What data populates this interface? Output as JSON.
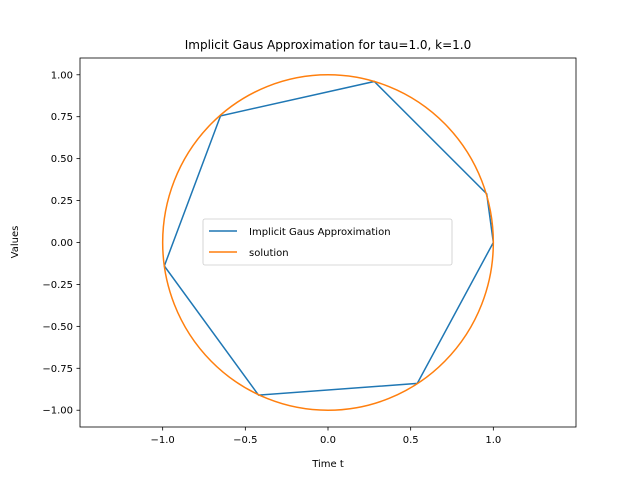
{
  "chart_data": {
    "type": "line",
    "title": "Implicit Gaus Approximation for tau=1.0, k=1.0",
    "xlabel": "Time t",
    "ylabel": "Values",
    "xlim": [
      -1.5,
      1.5
    ],
    "ylim": [
      -1.1,
      1.1
    ],
    "xticks": [
      -1.0,
      -0.5,
      0.0,
      0.5,
      1.0
    ],
    "xtick_labels": [
      "−1.0",
      "−0.5",
      "0.0",
      "0.5",
      "1.0"
    ],
    "yticks": [
      -1.0,
      -0.75,
      -0.5,
      -0.25,
      0.0,
      0.25,
      0.5,
      0.75,
      1.0
    ],
    "ytick_labels": [
      "−1.00",
      "−0.75",
      "−0.50",
      "−0.25",
      "0.00",
      "0.25",
      "0.50",
      "0.75",
      "1.00"
    ],
    "legend_position": "center",
    "grid": false,
    "series": [
      {
        "name": "Implicit Gaus Approximation",
        "color": "#1f77b4",
        "x": [
          1.0,
          0.54,
          -0.42,
          -0.99,
          -0.65,
          0.28,
          0.96,
          1.0
        ],
        "y": [
          0.0,
          -0.84,
          -0.91,
          -0.14,
          0.755,
          0.96,
          0.29,
          0.0
        ]
      },
      {
        "name": "solution",
        "color": "#ff7f0e",
        "parametric": "unit circle (cos t, sin t)",
        "x_range": [
          -1.0,
          1.0
        ],
        "y_range": [
          -1.0,
          1.0
        ]
      }
    ]
  }
}
